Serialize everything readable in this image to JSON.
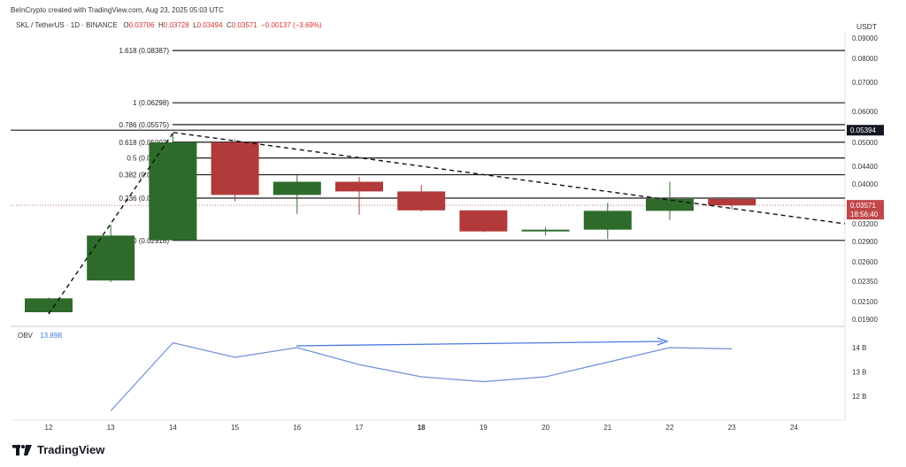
{
  "header": {
    "credit": "BeInCrypto created with TradingView.com, Aug 23, 2025 05:03 UTC",
    "symbol": "SKL / TetherUS · 1D · BINANCE",
    "ohlc": {
      "o_label": "O",
      "o": "0.03706",
      "h_label": "H",
      "h": "0.03728",
      "l_label": "L",
      "l": "0.03494",
      "c_label": "C",
      "c": "0.03571",
      "change": "−0.00137 (−3.69%)"
    },
    "currency": "USDT"
  },
  "price_axis": {
    "ticks": [
      "0.09000",
      "0.08000",
      "0.07000",
      "0.06000",
      "0.05000",
      "0.04400",
      "0.04000",
      "0.03200",
      "0.02900",
      "0.02600",
      "0.02350",
      "0.02100",
      "0.01900"
    ],
    "highlight_price": "0.05394",
    "current_price": "0.03571",
    "countdown": "18:56:40"
  },
  "fib_levels": [
    {
      "label": "1.618 (0.08387)",
      "price": 0.08387
    },
    {
      "label": "1 (0.06298)",
      "price": 0.06298
    },
    {
      "label": "0.786 (0.05575)",
      "price": 0.05575
    },
    {
      "label": "0.618 (0.05007)",
      "price": 0.05007
    },
    {
      "label": "0.5 (0.04609)",
      "price": 0.04609
    },
    {
      "label": "0.382 (0.04209)",
      "price": 0.04209
    },
    {
      "label": "0.236 (0.03716)",
      "price": 0.03716
    },
    {
      "label": "0 (0.02918)",
      "price": 0.02918
    }
  ],
  "x_axis": {
    "labels": [
      "12",
      "13",
      "14",
      "15",
      "16",
      "17",
      "18",
      "19",
      "20",
      "21",
      "22",
      "23",
      "24"
    ],
    "bold": "18"
  },
  "candles": [
    {
      "day": "12",
      "o": 0.0198,
      "h": 0.0215,
      "l": 0.0196,
      "c": 0.0214
    },
    {
      "day": "13",
      "o": 0.0236,
      "h": 0.0318,
      "l": 0.0234,
      "c": 0.03
    },
    {
      "day": "14",
      "o": 0.0292,
      "h": 0.053,
      "l": 0.0292,
      "c": 0.05
    },
    {
      "day": "15",
      "o": 0.05,
      "h": 0.051,
      "l": 0.0365,
      "c": 0.0378
    },
    {
      "day": "16",
      "o": 0.0378,
      "h": 0.042,
      "l": 0.034,
      "c": 0.0405
    },
    {
      "day": "17",
      "o": 0.0405,
      "h": 0.0416,
      "l": 0.0338,
      "c": 0.0385
    },
    {
      "day": "18",
      "o": 0.0385,
      "h": 0.0398,
      "l": 0.0345,
      "c": 0.0347
    },
    {
      "day": "19",
      "o": 0.0347,
      "h": 0.0347,
      "l": 0.0306,
      "c": 0.0307
    },
    {
      "day": "20",
      "o": 0.0307,
      "h": 0.0314,
      "l": 0.03,
      "c": 0.031
    },
    {
      "day": "21",
      "o": 0.031,
      "h": 0.0362,
      "l": 0.0294,
      "c": 0.0346
    },
    {
      "day": "22",
      "o": 0.0346,
      "h": 0.0405,
      "l": 0.0328,
      "c": 0.037
    },
    {
      "day": "23",
      "o": 0.037,
      "h": 0.0373,
      "l": 0.0349,
      "c": 0.0357
    }
  ],
  "obv": {
    "label": "OBV",
    "value": "13.89B",
    "ticks": [
      "14 B",
      "13 B",
      "12 B"
    ],
    "values": [
      null,
      11.4,
      14.2,
      13.6,
      14.0,
      13.3,
      12.8,
      12.6,
      12.8,
      13.4,
      14.0,
      13.95
    ]
  },
  "colors": {
    "bull": "#2e6b2a",
    "bear": "#b23a3a",
    "obv": "#6f8fd8",
    "arrow": "#4a79e0",
    "price_tag": "#c0474a",
    "highlight_tag": "#131722"
  },
  "brand": "TradingView"
}
